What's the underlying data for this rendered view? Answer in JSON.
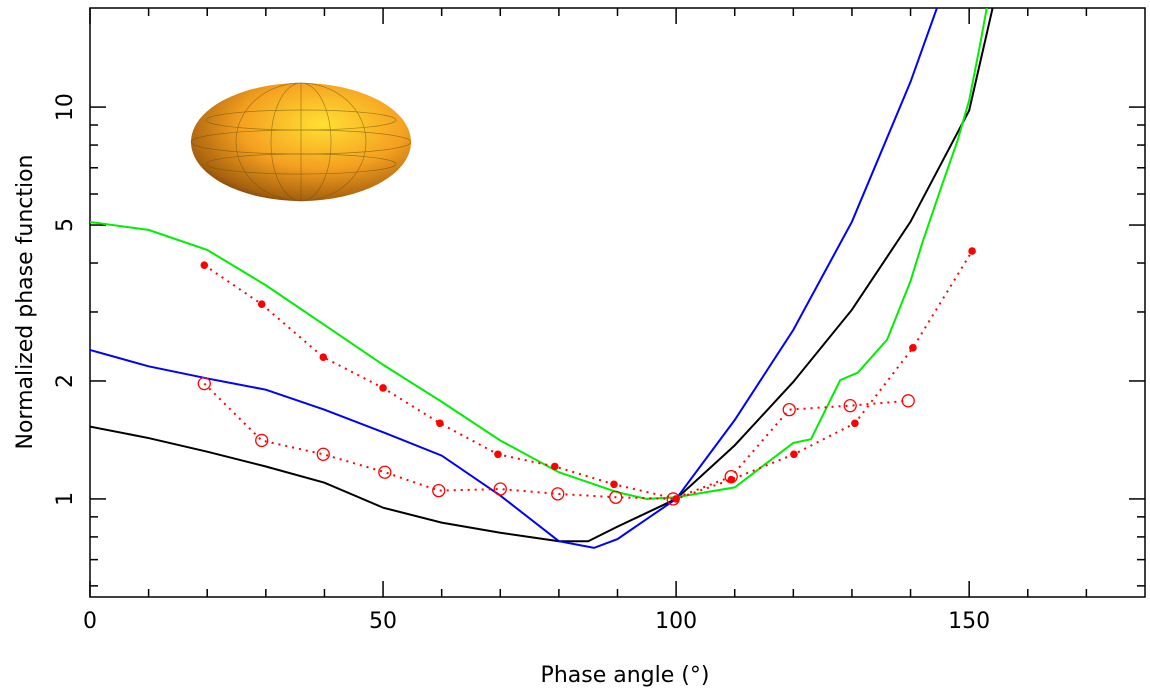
{
  "chart_data": {
    "type": "line",
    "x_label": "Phase angle (°)",
    "y_label": "Normalized phase function",
    "xlim": [
      0,
      180
    ],
    "xticks": [
      0,
      50,
      100,
      150
    ],
    "xticks_minor": [
      10,
      20,
      30,
      40,
      60,
      70,
      80,
      90,
      110,
      120,
      130,
      140,
      160,
      170
    ],
    "ylim": [
      0.562,
      17.9
    ],
    "log_y": true,
    "yticks": [
      1,
      2,
      5,
      10
    ],
    "yticks_minor": [
      0.6,
      0.7,
      0.8,
      0.9,
      3,
      4,
      6,
      7,
      8,
      9
    ],
    "series": [
      {
        "color": "#000000",
        "style": "solid",
        "x": [
          0,
          10,
          20,
          30,
          40,
          50,
          60,
          70,
          80,
          85,
          90,
          100,
          110,
          120,
          130,
          140,
          150,
          154
        ],
        "values": [
          1.53,
          1.43,
          1.32,
          1.21,
          1.1,
          0.95,
          0.87,
          0.82,
          0.78,
          0.78,
          0.85,
          1,
          1.37,
          1.99,
          3.04,
          5.1,
          9.8,
          17.9
        ]
      },
      {
        "color": "#0000ff",
        "style": "solid",
        "x": [
          0,
          10,
          20,
          30,
          40,
          50,
          60,
          70,
          80,
          86,
          90,
          100,
          110,
          120,
          130,
          140,
          144.5
        ],
        "values": [
          2.4,
          2.18,
          2.03,
          1.9,
          1.69,
          1.48,
          1.29,
          1.02,
          0.78,
          0.75,
          0.79,
          1,
          1.59,
          2.7,
          5.1,
          11.6,
          17.9
        ]
      },
      {
        "color": "#00ee00",
        "style": "solid",
        "x": [
          0,
          10,
          20,
          30,
          40,
          50,
          60,
          70,
          80,
          90,
          95,
          100,
          110,
          115,
          120,
          123,
          128,
          131,
          136,
          140,
          142,
          145,
          148,
          150,
          152,
          153
        ],
        "values": [
          5.09,
          4.86,
          4.32,
          3.51,
          2.78,
          2.2,
          1.77,
          1.41,
          1.17,
          1.04,
          1,
          1.01,
          1.07,
          1.22,
          1.39,
          1.42,
          2.01,
          2.1,
          2.55,
          3.6,
          4.5,
          6.1,
          8.2,
          10.4,
          14.8,
          17.9
        ]
      },
      {
        "color": "#ff0000",
        "style": "dotted",
        "marker": "dot",
        "x": [
          19.5,
          29.3,
          39.8,
          50,
          59.7,
          69.6,
          79.3,
          89.4,
          100,
          109.4,
          120.1,
          130.5,
          140.4,
          150.5
        ],
        "values": [
          3.95,
          3.14,
          2.3,
          1.92,
          1.56,
          1.3,
          1.21,
          1.09,
          1,
          1.12,
          1.3,
          1.56,
          2.43,
          4.29
        ]
      },
      {
        "color": "#ff0000",
        "style": "dotted",
        "marker": "circle",
        "x": [
          19.5,
          29.3,
          39.8,
          50.3,
          59.5,
          70,
          79.8,
          89.7,
          99.5,
          109.4,
          119.3,
          129.7,
          139.6
        ],
        "values": [
          1.97,
          1.41,
          1.3,
          1.17,
          1.05,
          1.06,
          1.03,
          1.01,
          1,
          1.14,
          1.69,
          1.73,
          1.78
        ]
      }
    ]
  }
}
